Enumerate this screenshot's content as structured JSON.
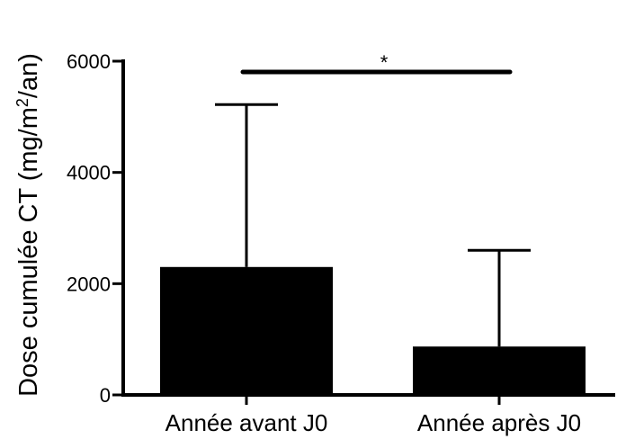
{
  "chart_data": {
    "type": "bar",
    "title": "",
    "xlabel": "",
    "ylabel": {
      "prefix": "Dose cumulée CT (mg/m",
      "sup": "2",
      "suffix": "/an)"
    },
    "categories": [
      "Année avant J0",
      "Année après J0"
    ],
    "values": [
      2300,
      870
    ],
    "error_upper": [
      5220,
      2600
    ],
    "ylim": [
      0,
      6000
    ],
    "yticks": [
      0,
      2000,
      4000,
      6000
    ],
    "ytick_labels": [
      "0",
      "2000",
      "4000",
      "6000"
    ],
    "grid": false,
    "bar_color": "#000000",
    "significance": {
      "between": [
        "Année avant J0",
        "Année après J0"
      ],
      "label": "*"
    }
  }
}
